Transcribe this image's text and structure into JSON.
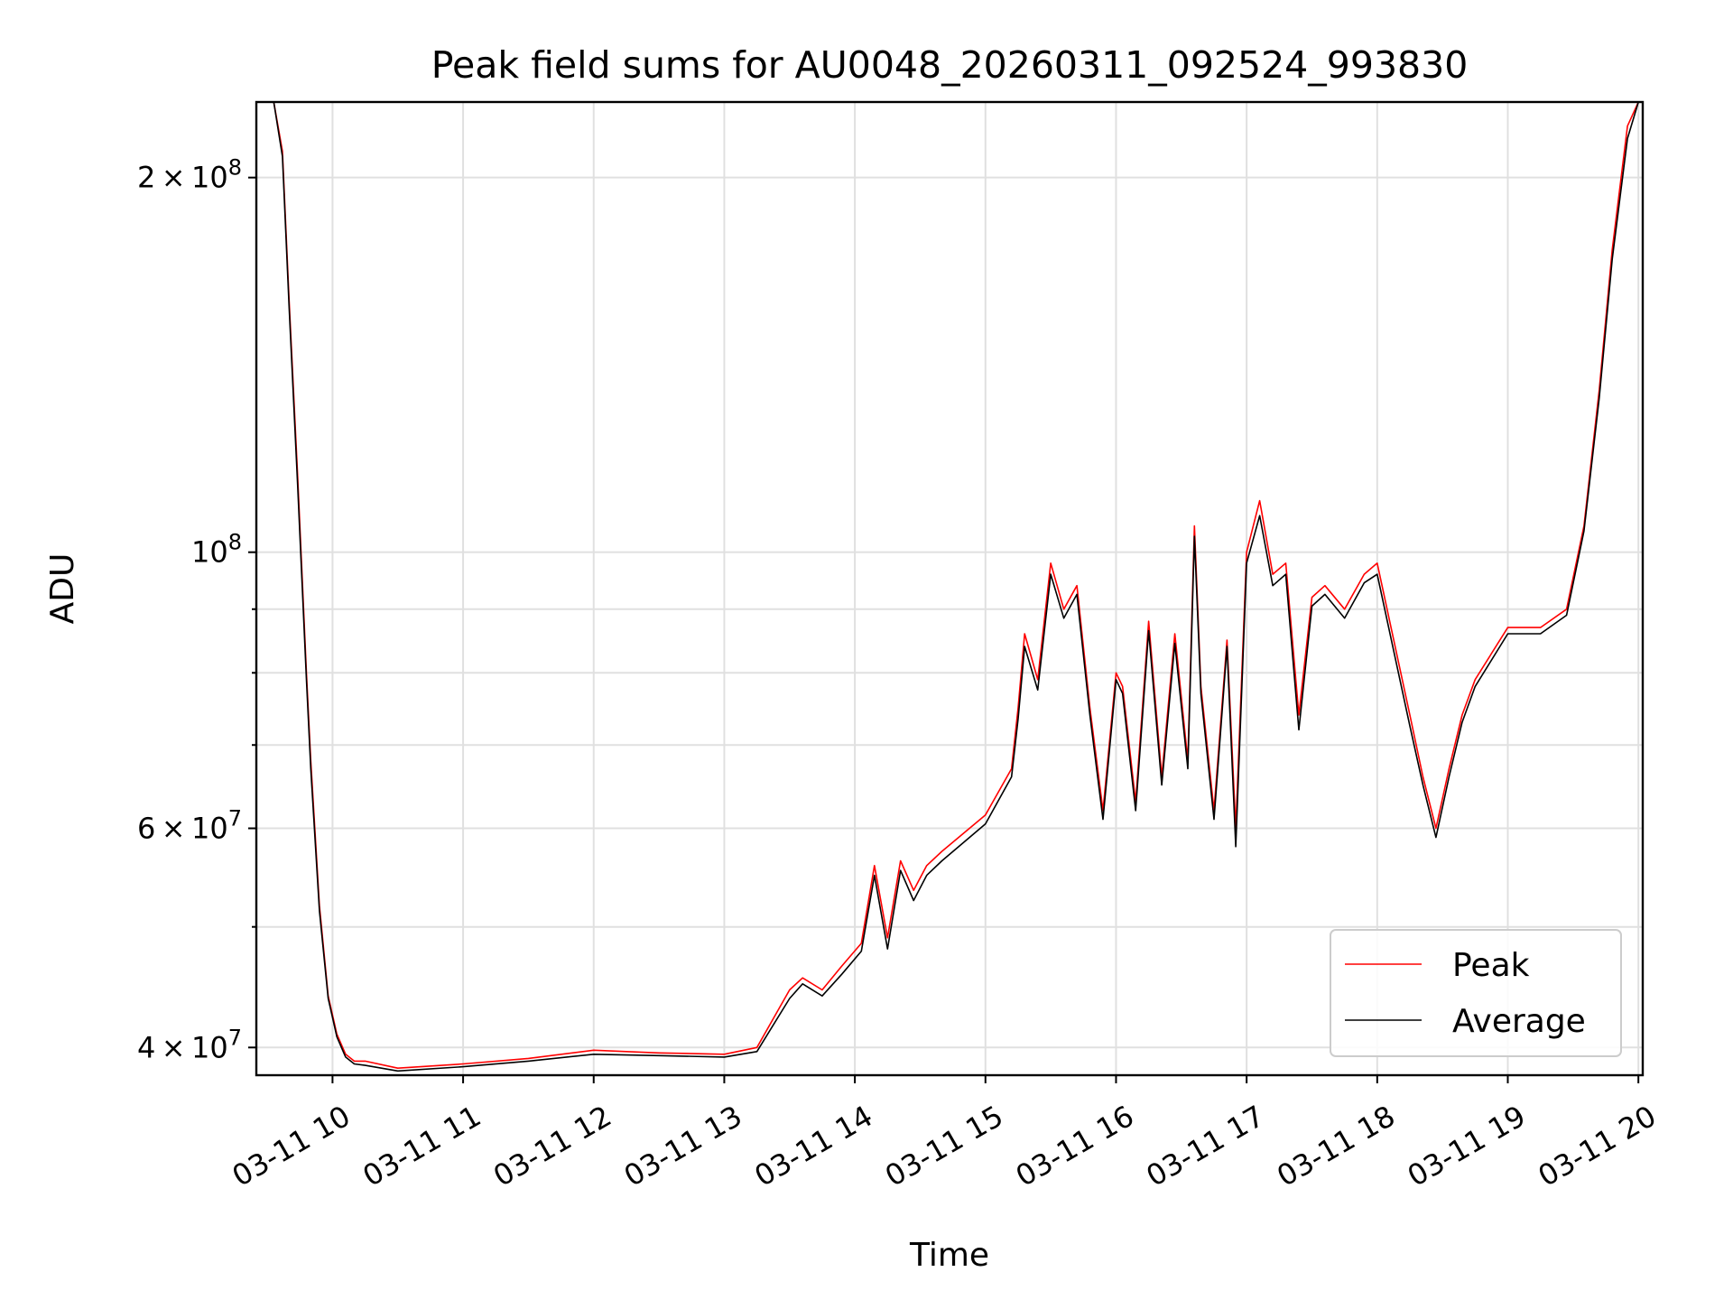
{
  "chart_data": {
    "type": "line",
    "title": "Peak field sums for AU0048_20260311_092524_993830",
    "xlabel": "Time",
    "ylabel": "ADU",
    "y_scale": "log",
    "ylim": [
      38000000,
      230000000
    ],
    "xlim": [
      "2026-03-11 09:25",
      "2026-03-11 20:02"
    ],
    "grid": true,
    "legend_position": "lower right",
    "x_ticks": [
      {
        "value": "2026-03-11 10:00",
        "label": "03-11 10"
      },
      {
        "value": "2026-03-11 11:00",
        "label": "03-11 11"
      },
      {
        "value": "2026-03-11 12:00",
        "label": "03-11 12"
      },
      {
        "value": "2026-03-11 13:00",
        "label": "03-11 13"
      },
      {
        "value": "2026-03-11 14:00",
        "label": "03-11 14"
      },
      {
        "value": "2026-03-11 15:00",
        "label": "03-11 15"
      },
      {
        "value": "2026-03-11 16:00",
        "label": "03-11 16"
      },
      {
        "value": "2026-03-11 17:00",
        "label": "03-11 17"
      },
      {
        "value": "2026-03-11 18:00",
        "label": "03-11 18"
      },
      {
        "value": "2026-03-11 19:00",
        "label": "03-11 19"
      },
      {
        "value": "2026-03-11 20:00",
        "label": "03-11 20"
      }
    ],
    "y_major_ticks": [
      {
        "value": 40000000,
        "mantissa": "4",
        "exponent": "7"
      },
      {
        "value": 60000000,
        "mantissa": "6",
        "exponent": "7"
      },
      {
        "value": 100000000,
        "mantissa": "",
        "exponent": "8"
      },
      {
        "value": 200000000,
        "mantissa": "2",
        "exponent": "8"
      }
    ],
    "y_minor_ticks": [
      50000000,
      70000000,
      80000000,
      90000000
    ],
    "series": [
      {
        "name": "Peak",
        "color": "#ff0000",
        "x": [
          "2026-03-11 09:25",
          "2026-03-11 09:33",
          "2026-03-11 09:37",
          "2026-03-11 09:40",
          "2026-03-11 09:44",
          "2026-03-11 09:48",
          "2026-03-11 09:50",
          "2026-03-11 09:54",
          "2026-03-11 09:58",
          "2026-03-11 10:02",
          "2026-03-11 10:06",
          "2026-03-11 10:10",
          "2026-03-11 10:15",
          "2026-03-11 10:30",
          "2026-03-11 11:00",
          "2026-03-11 11:30",
          "2026-03-11 12:00",
          "2026-03-11 12:30",
          "2026-03-11 13:00",
          "2026-03-11 13:15",
          "2026-03-11 13:30",
          "2026-03-11 13:36",
          "2026-03-11 13:45",
          "2026-03-11 13:54",
          "2026-03-11 14:03",
          "2026-03-11 14:09",
          "2026-03-11 14:15",
          "2026-03-11 14:21",
          "2026-03-11 14:27",
          "2026-03-11 14:33",
          "2026-03-11 14:40",
          "2026-03-11 15:00",
          "2026-03-11 15:12",
          "2026-03-11 15:15",
          "2026-03-11 15:18",
          "2026-03-11 15:24",
          "2026-03-11 15:30",
          "2026-03-11 15:36",
          "2026-03-11 15:42",
          "2026-03-11 15:48",
          "2026-03-11 15:54",
          "2026-03-11 16:00",
          "2026-03-11 16:03",
          "2026-03-11 16:09",
          "2026-03-11 16:15",
          "2026-03-11 16:21",
          "2026-03-11 16:27",
          "2026-03-11 16:33",
          "2026-03-11 16:36",
          "2026-03-11 16:39",
          "2026-03-11 16:45",
          "2026-03-11 16:51",
          "2026-03-11 16:55",
          "2026-03-11 17:00",
          "2026-03-11 17:06",
          "2026-03-11 17:12",
          "2026-03-11 17:18",
          "2026-03-11 17:24",
          "2026-03-11 17:30",
          "2026-03-11 17:36",
          "2026-03-11 17:45",
          "2026-03-11 17:54",
          "2026-03-11 18:00",
          "2026-03-11 18:15",
          "2026-03-11 18:21",
          "2026-03-11 18:27",
          "2026-03-11 18:33",
          "2026-03-11 18:39",
          "2026-03-11 18:45",
          "2026-03-11 19:00",
          "2026-03-11 19:15",
          "2026-03-11 19:27",
          "2026-03-11 19:35",
          "2026-03-11 19:42",
          "2026-03-11 19:48",
          "2026-03-11 19:55",
          "2026-03-11 20:00"
        ],
        "y": [
          230000000,
          230000000,
          210000000,
          160000000,
          115000000,
          80000000,
          68000000,
          52000000,
          44000000,
          41000000,
          39500000,
          39000000,
          39000000,
          38500000,
          38800000,
          39200000,
          39800000,
          39600000,
          39500000,
          40000000,
          44500000,
          45500000,
          44500000,
          46500000,
          48500000,
          56000000,
          49000000,
          56500000,
          53500000,
          56000000,
          57500000,
          61500000,
          67000000,
          75000000,
          86000000,
          79000000,
          98000000,
          90000000,
          94000000,
          75000000,
          62000000,
          80000000,
          78000000,
          63000000,
          88000000,
          66000000,
          86000000,
          68000000,
          105000000,
          78000000,
          62000000,
          85000000,
          60000000,
          100000000,
          110000000,
          96000000,
          98000000,
          74000000,
          92000000,
          94000000,
          90000000,
          96000000,
          98000000,
          74000000,
          66000000,
          60000000,
          67000000,
          74000000,
          79000000,
          87000000,
          87000000,
          90000000,
          105000000,
          135000000,
          175000000,
          220000000,
          230000000
        ]
      },
      {
        "name": "Average",
        "color": "#000000",
        "x": [
          "2026-03-11 09:25",
          "2026-03-11 09:33",
          "2026-03-11 09:37",
          "2026-03-11 09:40",
          "2026-03-11 09:44",
          "2026-03-11 09:48",
          "2026-03-11 09:50",
          "2026-03-11 09:54",
          "2026-03-11 09:58",
          "2026-03-11 10:02",
          "2026-03-11 10:06",
          "2026-03-11 10:10",
          "2026-03-11 10:15",
          "2026-03-11 10:30",
          "2026-03-11 11:00",
          "2026-03-11 11:30",
          "2026-03-11 12:00",
          "2026-03-11 12:30",
          "2026-03-11 13:00",
          "2026-03-11 13:15",
          "2026-03-11 13:30",
          "2026-03-11 13:36",
          "2026-03-11 13:45",
          "2026-03-11 13:54",
          "2026-03-11 14:03",
          "2026-03-11 14:09",
          "2026-03-11 14:15",
          "2026-03-11 14:21",
          "2026-03-11 14:27",
          "2026-03-11 14:33",
          "2026-03-11 14:40",
          "2026-03-11 15:00",
          "2026-03-11 15:12",
          "2026-03-11 15:15",
          "2026-03-11 15:18",
          "2026-03-11 15:24",
          "2026-03-11 15:30",
          "2026-03-11 15:36",
          "2026-03-11 15:42",
          "2026-03-11 15:48",
          "2026-03-11 15:54",
          "2026-03-11 16:00",
          "2026-03-11 16:03",
          "2026-03-11 16:09",
          "2026-03-11 16:15",
          "2026-03-11 16:21",
          "2026-03-11 16:27",
          "2026-03-11 16:33",
          "2026-03-11 16:36",
          "2026-03-11 16:39",
          "2026-03-11 16:45",
          "2026-03-11 16:51",
          "2026-03-11 16:55",
          "2026-03-11 17:00",
          "2026-03-11 17:06",
          "2026-03-11 17:12",
          "2026-03-11 17:18",
          "2026-03-11 17:24",
          "2026-03-11 17:30",
          "2026-03-11 17:36",
          "2026-03-11 17:45",
          "2026-03-11 17:54",
          "2026-03-11 18:00",
          "2026-03-11 18:15",
          "2026-03-11 18:21",
          "2026-03-11 18:27",
          "2026-03-11 18:33",
          "2026-03-11 18:39",
          "2026-03-11 18:45",
          "2026-03-11 19:00",
          "2026-03-11 19:15",
          "2026-03-11 19:27",
          "2026-03-11 19:35",
          "2026-03-11 19:42",
          "2026-03-11 19:48",
          "2026-03-11 19:55",
          "2026-03-11 20:00"
        ],
        "y": [
          230000000,
          230000000,
          208000000,
          158000000,
          113000000,
          79000000,
          67000000,
          51500000,
          43800000,
          40800000,
          39300000,
          38800000,
          38700000,
          38300000,
          38600000,
          39000000,
          39500000,
          39400000,
          39300000,
          39700000,
          43800000,
          45000000,
          44000000,
          45800000,
          47800000,
          55000000,
          48000000,
          55500000,
          52500000,
          55000000,
          56500000,
          60500000,
          66000000,
          73500000,
          84000000,
          77500000,
          96000000,
          88500000,
          92500000,
          74000000,
          61000000,
          79000000,
          77000000,
          62000000,
          86500000,
          65000000,
          84500000,
          67000000,
          103000000,
          77000000,
          61000000,
          84000000,
          58000000,
          98000000,
          107000000,
          94000000,
          96000000,
          72000000,
          90500000,
          92500000,
          88500000,
          94500000,
          96000000,
          72500000,
          65000000,
          59000000,
          66000000,
          73000000,
          78000000,
          86000000,
          86000000,
          89000000,
          104000000,
          133000000,
          172000000,
          215000000,
          230000000
        ]
      }
    ]
  }
}
